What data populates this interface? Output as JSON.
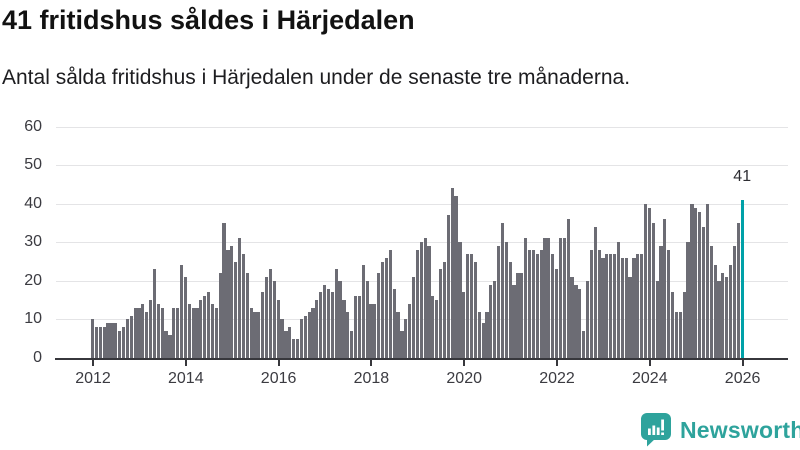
{
  "header": {
    "title": "41 fritidshus såldes i Härjedalen",
    "subtitle": "Antal sålda fritidshus i Härjedalen under de senaste tre månaderna."
  },
  "chart_data": {
    "type": "bar",
    "title": "41 fritidshus såldes i Härjedalen",
    "xlabel": "",
    "ylabel": "",
    "x_start": "2012-01",
    "interval": "monthly",
    "ylim": [
      0,
      60
    ],
    "grid": true,
    "y_ticks": [
      0,
      10,
      20,
      30,
      40,
      50,
      60
    ],
    "x_tick_years": [
      "2012",
      "2014",
      "2016",
      "2018",
      "2020",
      "2022",
      "2024",
      "2026"
    ],
    "bar_color": "#6c6c74",
    "highlight_color": "#00a1a8",
    "highlight_index": 168,
    "annotation": {
      "text": "41",
      "index": 168
    },
    "values": [
      10,
      8,
      8,
      8,
      9,
      9,
      9,
      7,
      8,
      10,
      11,
      13,
      13,
      14,
      12,
      15,
      23,
      14,
      13,
      7,
      6,
      13,
      13,
      24,
      21,
      14,
      13,
      13,
      15,
      16,
      17,
      14,
      13,
      22,
      35,
      28,
      29,
      25,
      31,
      27,
      22,
      13,
      12,
      12,
      17,
      21,
      23,
      20,
      15,
      10,
      7,
      8,
      5,
      5,
      10,
      11,
      12,
      13,
      15,
      17,
      19,
      18,
      17,
      23,
      20,
      15,
      12,
      7,
      16,
      16,
      24,
      20,
      14,
      14,
      22,
      25,
      26,
      28,
      18,
      12,
      7,
      10,
      14,
      21,
      28,
      30,
      31,
      29,
      16,
      15,
      23,
      25,
      37,
      44,
      42,
      30,
      17,
      27,
      27,
      25,
      12,
      9,
      12,
      19,
      20,
      29,
      35,
      30,
      25,
      19,
      22,
      22,
      31,
      28,
      28,
      27,
      28,
      31,
      31,
      27,
      23,
      31,
      31,
      36,
      21,
      19,
      18,
      7,
      20,
      28,
      34,
      28,
      26,
      27,
      27,
      27,
      30,
      26,
      26,
      21,
      26,
      27,
      27,
      40,
      39,
      35,
      20,
      29,
      36,
      28,
      17,
      12,
      12,
      17,
      30,
      40,
      39,
      38,
      34,
      40,
      29,
      24,
      20,
      22,
      21,
      24,
      29,
      35,
      41
    ]
  },
  "footer": {
    "logo_text": "Newsworthy",
    "logo_color": "#2ea39c",
    "logo_icon": "newsworthy-speech-bubble-bar-chart-icon"
  }
}
